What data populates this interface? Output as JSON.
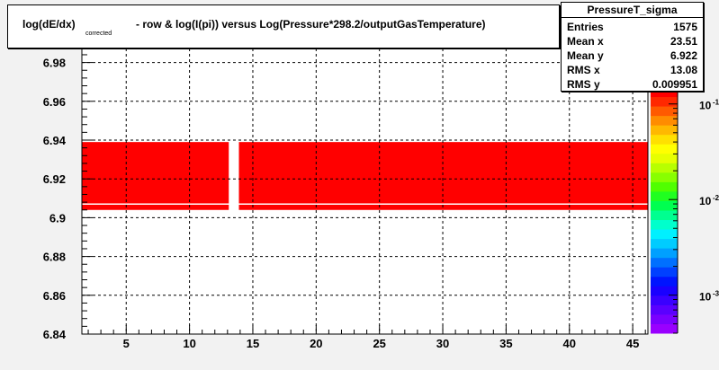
{
  "chart_data": {
    "type": "heatmap",
    "title": "log(dE/dx)",
    "title_subscript": "corrected",
    "title_rest": " - row & log(I(pi)) versus Log(Pressure*298.2/outputGasTemperature)",
    "xlim": [
      1.5,
      46.2
    ],
    "ylim": [
      6.84,
      6.99
    ],
    "x_ticks": [
      5,
      10,
      15,
      20,
      25,
      30,
      35,
      40,
      45
    ],
    "y_ticks": [
      "6.84",
      "6.86",
      "6.88",
      "6.9",
      "6.92",
      "6.94",
      "6.96",
      "6.98"
    ],
    "grid": true,
    "filled_regions": [
      {
        "x": [
          1.5,
          13.1
        ],
        "y": [
          6.904,
          6.939
        ]
      },
      {
        "x": [
          13.9,
          46.2
        ],
        "y": [
          6.904,
          6.939
        ]
      }
    ],
    "white_line_y": 6.907,
    "fill_color": "#ff0000",
    "colorbar": {
      "scale": "log",
      "range": [
        0.0004,
        0.15
      ],
      "tick_labels": [
        {
          "base": "10",
          "exp": "-1",
          "value": 0.1
        },
        {
          "base": "10",
          "exp": "-2",
          "value": 0.01
        },
        {
          "base": "10",
          "exp": "-3",
          "value": 0.001
        }
      ],
      "colors": [
        "#9900ff",
        "#7a00ff",
        "#5a00ff",
        "#3a00ff",
        "#1a00ff",
        "#0014ff",
        "#0040ff",
        "#0070ff",
        "#00a0ff",
        "#00ccff",
        "#00f0ff",
        "#00ffcc",
        "#00ff90",
        "#00ff50",
        "#20ff20",
        "#50ff00",
        "#88ff00",
        "#b8ff00",
        "#e6ff00",
        "#ffff00",
        "#ffe000",
        "#ffb800",
        "#ff8c00",
        "#ff5a00",
        "#ff2800",
        "#ff0000"
      ]
    }
  },
  "stats": {
    "name": "PressureT_sigma",
    "rows": [
      {
        "key": "Entries",
        "value": "1575"
      },
      {
        "key": "Mean x",
        "value": "23.51"
      },
      {
        "key": "Mean y",
        "value": "6.922"
      },
      {
        "key": "RMS x",
        "value": "13.08"
      },
      {
        "key": "RMS y",
        "value": "0.009951"
      }
    ]
  }
}
